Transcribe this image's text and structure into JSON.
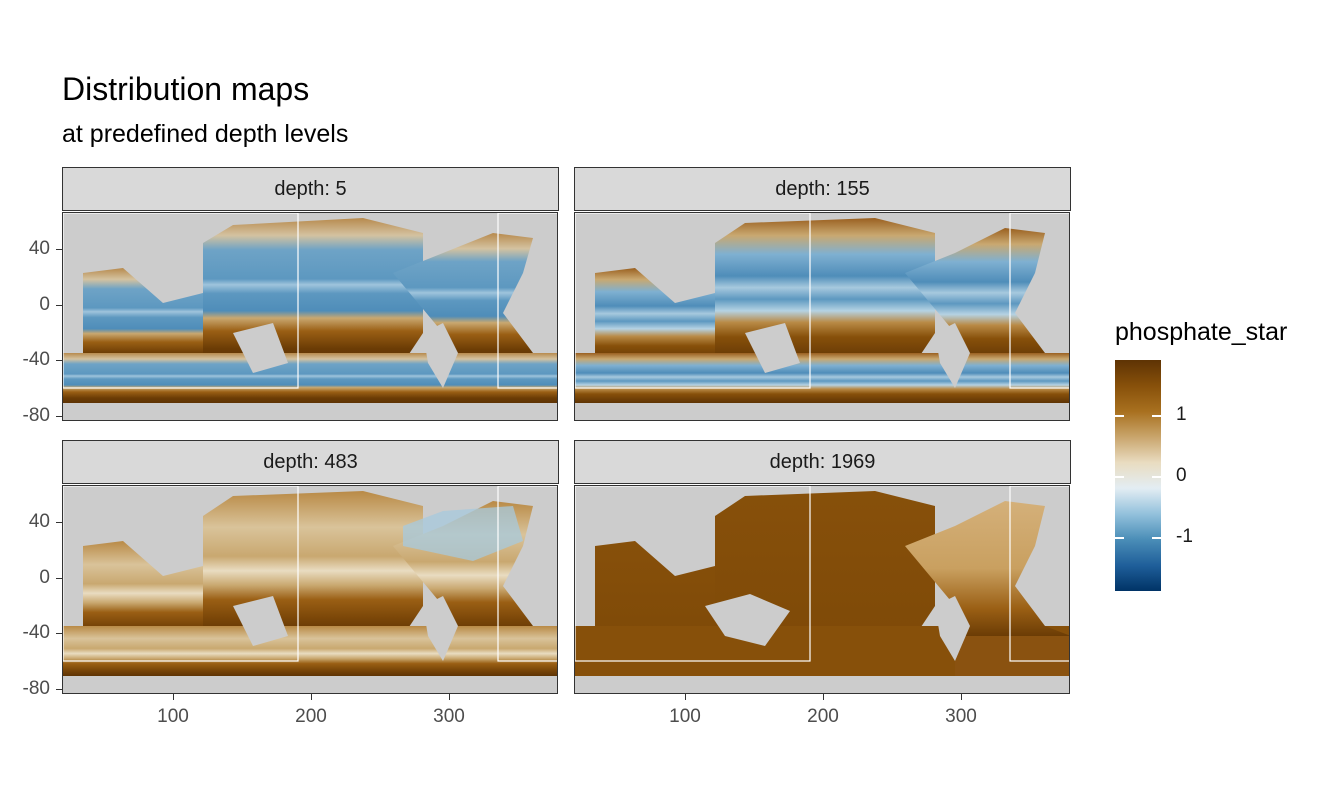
{
  "title": "Distribution maps",
  "subtitle": "at predefined depth levels",
  "panels": [
    {
      "label": "depth: 5",
      "depth": 5
    },
    {
      "label": "depth: 155",
      "depth": 155
    },
    {
      "label": "depth: 483",
      "depth": 483
    },
    {
      "label": "depth: 1969",
      "depth": 1969
    }
  ],
  "x_ticks": [
    "100",
    "200",
    "300"
  ],
  "y_ticks": [
    "40",
    "0",
    "-40",
    "-80"
  ],
  "legend": {
    "title": "phosphate_star",
    "labels": [
      "1",
      "0",
      "-1"
    ],
    "range": [
      -1.9,
      1.9
    ],
    "colors": [
      "#003366",
      "#1f5f9a",
      "#4a8db7",
      "#93c1dc",
      "#e3edf3",
      "#e9dcc1",
      "#c9a56c",
      "#a8701f",
      "#87500a",
      "#5e3304"
    ]
  },
  "colors": {
    "land": "#cccccc",
    "strip": "#d9d9d9",
    "box_outline": "#ffffff"
  }
}
